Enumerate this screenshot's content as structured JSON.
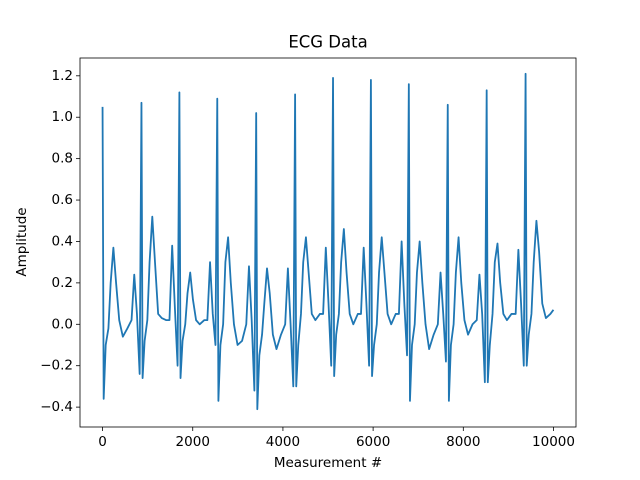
{
  "chart_data": {
    "type": "line",
    "title": "ECG Data",
    "xlabel": "Measurement #",
    "ylabel": "Amplitude",
    "xlim": [
      -500,
      10499
    ],
    "ylim": [
      -0.496,
      1.286
    ],
    "xticks": [
      0,
      2000,
      4000,
      6000,
      8000,
      10000
    ],
    "yticks": [
      {
        "value": -0.4,
        "label": "−0.4"
      },
      {
        "value": -0.2,
        "label": "−0.2"
      },
      {
        "value": 0,
        "label": "0.0"
      },
      {
        "value": 0.2,
        "label": "0.2"
      },
      {
        "value": 0.4,
        "label": "0.4"
      },
      {
        "value": 0.6,
        "label": "0.6"
      },
      {
        "value": 0.8,
        "label": "0.8"
      },
      {
        "value": 1.0,
        "label": "1.0"
      },
      {
        "value": 1.2,
        "label": "1.2"
      }
    ],
    "color": "#1f77b4",
    "x": [
      0,
      25,
      70,
      130,
      180,
      240,
      300,
      370,
      450,
      550,
      643,
      703,
      763,
      823,
      863,
      888,
      933,
      993,
      1043,
      1103,
      1163,
      1233,
      1313,
      1413,
      1484,
      1544,
      1604,
      1664,
      1704,
      1729,
      1774,
      1834,
      1884,
      1944,
      2004,
      2074,
      2154,
      2254,
      2324,
      2384,
      2444,
      2504,
      2544,
      2569,
      2614,
      2674,
      2724,
      2784,
      2844,
      2914,
      2994,
      3094,
      3187,
      3247,
      3307,
      3367,
      3407,
      3432,
      3477,
      3537,
      3587,
      3647,
      3707,
      3777,
      3857,
      3957,
      4050,
      4110,
      4170,
      4230,
      4270,
      4295,
      4340,
      4400,
      4450,
      4510,
      4570,
      4640,
      4720,
      4820,
      4891,
      4951,
      5011,
      5071,
      5111,
      5136,
      5181,
      5241,
      5291,
      5351,
      5411,
      5481,
      5561,
      5661,
      5731,
      5791,
      5851,
      5911,
      5951,
      5976,
      6021,
      6081,
      6131,
      6191,
      6251,
      6321,
      6401,
      6501,
      6572,
      6632,
      6692,
      6752,
      6792,
      6817,
      6862,
      6922,
      6972,
      7032,
      7092,
      7162,
      7242,
      7342,
      7435,
      7495,
      7555,
      7615,
      7655,
      7680,
      7725,
      7785,
      7835,
      7895,
      7955,
      8025,
      8105,
      8205,
      8298,
      8358,
      8418,
      8478,
      8518,
      8543,
      8588,
      8648,
      8698,
      8758,
      8818,
      8888,
      8968,
      9068,
      9161,
      9221,
      9281,
      9341,
      9381,
      9406,
      9451,
      9511,
      9561,
      9621,
      9681,
      9751,
      9831,
      9931,
      9999
    ],
    "values": [
      1.05,
      -0.36,
      -0.1,
      -0.02,
      0.2,
      0.37,
      0.2,
      0.02,
      -0.06,
      -0.02,
      0.02,
      0.24,
      0.05,
      -0.24,
      1.07,
      -0.26,
      -0.08,
      0.02,
      0.3,
      0.52,
      0.3,
      0.05,
      0.03,
      0.02,
      0.02,
      0.38,
      0.08,
      -0.2,
      1.12,
      -0.26,
      -0.08,
      0.0,
      0.15,
      0.25,
      0.12,
      0.02,
      0.0,
      0.02,
      0.02,
      0.3,
      0.05,
      -0.1,
      1.09,
      -0.37,
      -0.1,
      0.0,
      0.3,
      0.42,
      0.2,
      0.0,
      -0.1,
      -0.08,
      0.0,
      0.28,
      0.02,
      -0.32,
      1.02,
      -0.41,
      -0.15,
      -0.05,
      0.1,
      0.27,
      0.15,
      -0.05,
      -0.12,
      -0.05,
      0.0,
      0.27,
      0.0,
      -0.3,
      1.11,
      -0.3,
      -0.1,
      0.05,
      0.3,
      0.42,
      0.25,
      0.05,
      0.02,
      0.05,
      0.05,
      0.37,
      0.1,
      -0.2,
      1.19,
      -0.25,
      -0.05,
      0.05,
      0.3,
      0.46,
      0.25,
      0.05,
      0.0,
      0.05,
      0.05,
      0.37,
      0.1,
      -0.2,
      1.18,
      -0.25,
      -0.1,
      0.0,
      0.25,
      0.42,
      0.25,
      0.05,
      0.0,
      0.05,
      0.05,
      0.4,
      0.1,
      -0.15,
      1.16,
      -0.37,
      -0.1,
      0.0,
      0.25,
      0.4,
      0.2,
      0.0,
      -0.12,
      -0.05,
      0.0,
      0.25,
      0.05,
      -0.18,
      1.06,
      -0.37,
      -0.1,
      0.0,
      0.25,
      0.42,
      0.2,
      0.02,
      -0.05,
      0.0,
      0.02,
      0.24,
      0.05,
      -0.28,
      1.13,
      -0.28,
      -0.1,
      0.05,
      0.3,
      0.39,
      0.2,
      0.05,
      0.02,
      0.05,
      0.05,
      0.36,
      0.1,
      -0.2,
      1.21,
      -0.2,
      -0.05,
      0.05,
      0.3,
      0.5,
      0.35,
      0.1,
      0.03,
      0.05,
      0.07
    ]
  }
}
